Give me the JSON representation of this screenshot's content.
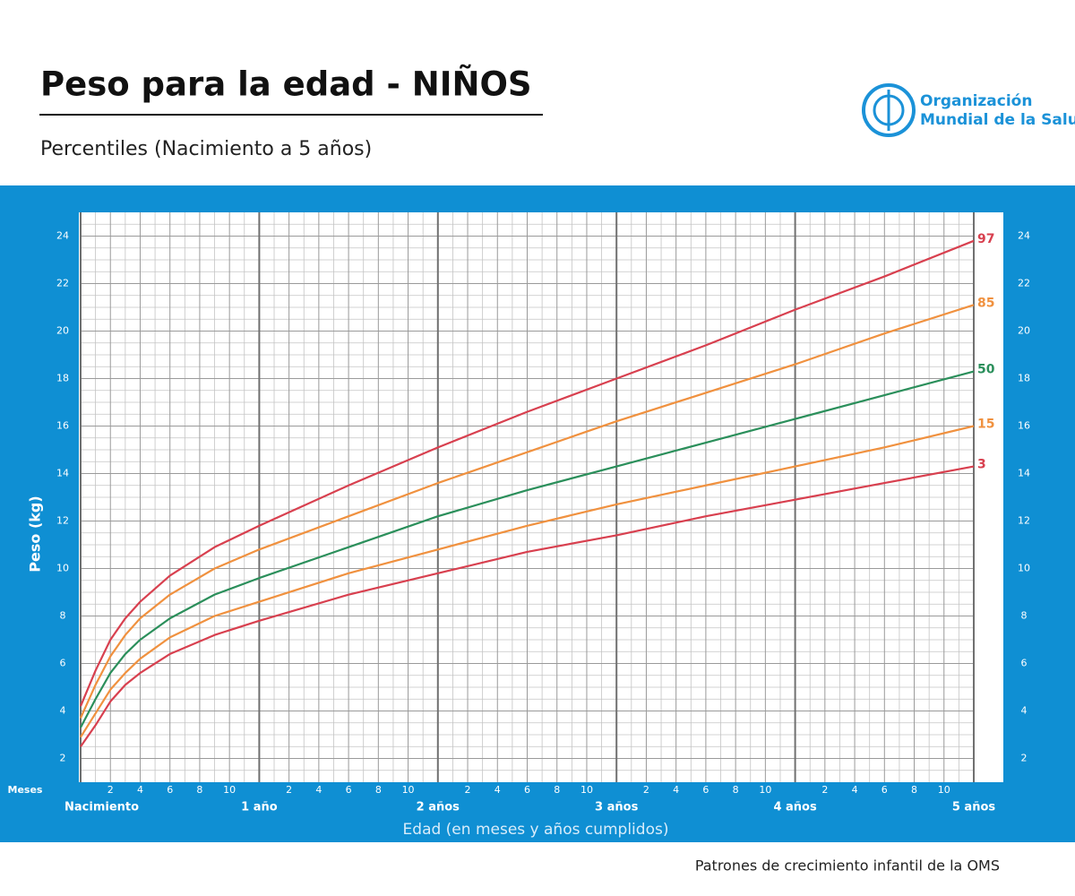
{
  "chart_data": {
    "type": "line",
    "title": "Peso para la edad - NIÑOS",
    "subtitle": "Percentiles (Nacimiento a 5 años)",
    "x_label": "Edad (en meses y años cumplidos)",
    "x_unit_label": "Meses",
    "y_label": "Peso (kg)",
    "x": [
      0,
      1,
      2,
      3,
      4,
      6,
      9,
      12,
      18,
      24,
      30,
      36,
      42,
      48,
      54,
      60
    ],
    "series": [
      {
        "name": "97",
        "color": "#d8404f",
        "values": [
          4.2,
          5.7,
          7.0,
          7.9,
          8.6,
          9.7,
          10.9,
          11.8,
          13.5,
          15.1,
          16.6,
          18.0,
          19.4,
          20.9,
          22.3,
          23.8
        ]
      },
      {
        "name": "85",
        "color": "#f0913f",
        "values": [
          3.7,
          5.1,
          6.3,
          7.2,
          7.9,
          8.9,
          10.0,
          10.8,
          12.2,
          13.6,
          14.9,
          16.2,
          17.4,
          18.6,
          19.9,
          21.1
        ]
      },
      {
        "name": "50",
        "color": "#2b8f5b",
        "values": [
          3.3,
          4.5,
          5.6,
          6.4,
          7.0,
          7.9,
          8.9,
          9.6,
          10.9,
          12.2,
          13.3,
          14.3,
          15.3,
          16.3,
          17.3,
          18.3
        ]
      },
      {
        "name": "15",
        "color": "#f0913f",
        "values": [
          2.9,
          3.9,
          4.9,
          5.6,
          6.2,
          7.1,
          8.0,
          8.6,
          9.8,
          10.8,
          11.8,
          12.7,
          13.5,
          14.3,
          15.1,
          16.0
        ]
      },
      {
        "name": "3",
        "color": "#d8404f",
        "values": [
          2.5,
          3.4,
          4.4,
          5.1,
          5.6,
          6.4,
          7.2,
          7.8,
          8.9,
          9.8,
          10.7,
          11.4,
          12.2,
          12.9,
          13.6,
          14.3
        ]
      }
    ],
    "xlim": [
      0,
      60
    ],
    "xticks": [
      2,
      4,
      6,
      8,
      10,
      {
        "value": 14,
        "label": "2"
      },
      {
        "value": 16,
        "label": "4"
      },
      {
        "value": 18,
        "label": "6"
      },
      {
        "value": 20,
        "label": "8"
      },
      {
        "value": 22,
        "label": "10"
      },
      {
        "value": 26,
        "label": "2"
      },
      {
        "value": 28,
        "label": "4"
      },
      {
        "value": 30,
        "label": "6"
      },
      {
        "value": 32,
        "label": "8"
      },
      {
        "value": 34,
        "label": "10"
      },
      {
        "value": 38,
        "label": "2"
      },
      {
        "value": 40,
        "label": "4"
      },
      {
        "value": 42,
        "label": "6"
      },
      {
        "value": 44,
        "label": "8"
      },
      {
        "value": 46,
        "label": "10"
      },
      {
        "value": 50,
        "label": "2"
      },
      {
        "value": 52,
        "label": "4"
      },
      {
        "value": 54,
        "label": "6"
      },
      {
        "value": 56,
        "label": "8"
      },
      {
        "value": 58,
        "label": "10"
      }
    ],
    "xticks_major": [
      {
        "value": 0,
        "label": "Nacimiento"
      },
      {
        "value": 12,
        "label": "1 año"
      },
      {
        "value": 24,
        "label": "2 años"
      },
      {
        "value": 36,
        "label": "3 años"
      },
      {
        "value": 48,
        "label": "4 años"
      },
      {
        "value": 60,
        "label": "5 años"
      }
    ],
    "ylim": [
      1,
      25
    ],
    "yticks": [
      2,
      4,
      6,
      8,
      10,
      12,
      14,
      16,
      18,
      20,
      22,
      24
    ],
    "grid": true
  },
  "logo": {
    "lines": [
      "Organización",
      "Mundial de la Salud"
    ]
  },
  "footer": "Patrones de crecimiento infantil de la OMS"
}
